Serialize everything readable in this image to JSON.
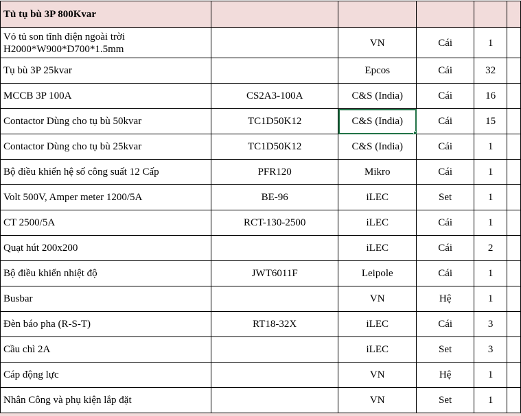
{
  "sheet": {
    "section_title": "Tủ tụ bù 3P 800Kvar",
    "header_fill_color": "#f2dcdb",
    "selection_color": "#217346",
    "selected_cell": {
      "row": 3,
      "column": "origin"
    },
    "rows": [
      {
        "description": "Vỏ tủ son tĩnh điện ngoài trời H2000*W900*D700*1.5mm",
        "model": "",
        "origin": "VN",
        "unit": "Cái",
        "qty": "1"
      },
      {
        "description": "Tụ bù 3P 25kvar",
        "model": "",
        "origin": "Epcos",
        "unit": "Cái",
        "qty": "32"
      },
      {
        "description": "MCCB 3P 100A",
        "model": "CS2A3-100A",
        "origin": "C&S (India)",
        "unit": "Cái",
        "qty": "16"
      },
      {
        "description": "Contactor Dùng cho tụ bù 50kvar",
        "model": "TC1D50K12",
        "origin": "C&S (India)",
        "unit": "Cái",
        "qty": "15"
      },
      {
        "description": "Contactor Dùng cho tụ bù 25kvar",
        "model": "TC1D50K12",
        "origin": "C&S (India)",
        "unit": "Cái",
        "qty": "1"
      },
      {
        "description": "Bộ điều khiển hệ số công suất 12 Cấp",
        "model": "PFR120",
        "origin": "Mikro",
        "unit": "Cái",
        "qty": "1"
      },
      {
        "description": "Volt 500V, Amper meter 1200/5A",
        "model": "BE-96",
        "origin": "iLEC",
        "unit": "Set",
        "qty": "1"
      },
      {
        "description": "CT 2500/5A",
        "model": "RCT-130-2500",
        "origin": "iLEC",
        "unit": "Cái",
        "qty": "1"
      },
      {
        "description": "Quạt hút 200x200",
        "model": "",
        "origin": "iLEC",
        "unit": "Cái",
        "qty": "2"
      },
      {
        "description": "Bộ điều khiển nhiệt độ",
        "model": "JWT6011F",
        "origin": "Leipole",
        "unit": "Cái",
        "qty": "1"
      },
      {
        "description": "Busbar",
        "model": "",
        "origin": "VN",
        "unit": "Hệ",
        "qty": "1"
      },
      {
        "description": "Đèn báo pha (R-S-T)",
        "model": "RT18-32X",
        "origin": "iLEC",
        "unit": "Cái",
        "qty": "3"
      },
      {
        "description": "Cầu chì  2A",
        "model": "",
        "origin": "iLEC",
        "unit": "Set",
        "qty": "3"
      },
      {
        "description": "Cáp động lực",
        "model": "",
        "origin": "VN",
        "unit": "Hệ",
        "qty": "1"
      },
      {
        "description": "Nhân Công và phụ kiện lắp đặt",
        "model": "",
        "origin": "VN",
        "unit": "Set",
        "qty": "1"
      }
    ]
  }
}
